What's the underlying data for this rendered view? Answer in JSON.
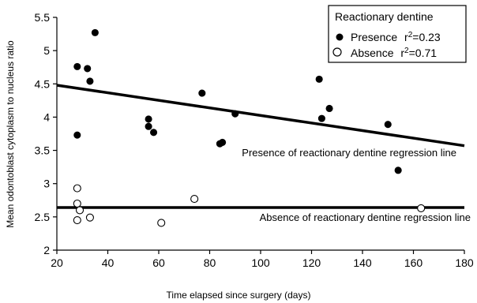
{
  "chart_data": {
    "type": "scatter",
    "xlabel": "Time elapsed since surgery (days)",
    "ylabel": "Mean odontoblast cytoplasm to nucleus ratio",
    "xlim": [
      20,
      180
    ],
    "ylim": [
      2,
      5.5
    ],
    "xticks": [
      20,
      40,
      60,
      80,
      100,
      120,
      140,
      160,
      180
    ],
    "yticks": [
      2,
      2.5,
      3,
      3.5,
      4,
      4.5,
      5,
      5.5
    ],
    "grid": false,
    "legend_title": "Reactionary dentine",
    "legend_position": "top-right",
    "series": [
      {
        "name": "Presence",
        "r2_label": "r2=0.23",
        "marker": "filled-circle",
        "color": "#000000",
        "points": [
          [
            28,
            4.76
          ],
          [
            28,
            3.73
          ],
          [
            32,
            4.73
          ],
          [
            33,
            4.54
          ],
          [
            35,
            5.27
          ],
          [
            56,
            3.97
          ],
          [
            56,
            3.86
          ],
          [
            58,
            3.77
          ],
          [
            77,
            4.36
          ],
          [
            84,
            3.6
          ],
          [
            85,
            3.62
          ],
          [
            90,
            4.05
          ],
          [
            123,
            4.57
          ],
          [
            124,
            3.98
          ],
          [
            127,
            4.13
          ],
          [
            150,
            3.89
          ],
          [
            154,
            3.2
          ]
        ],
        "regression": {
          "x": [
            20,
            180
          ],
          "y": [
            4.48,
            3.57
          ]
        },
        "regression_label": "Presence of reactionary dentine regression line"
      },
      {
        "name": "Absence",
        "r2_label": "r2=0.71",
        "marker": "open-circle",
        "color": "#000000",
        "points": [
          [
            28,
            2.93
          ],
          [
            28,
            2.7
          ],
          [
            29,
            2.6
          ],
          [
            28,
            2.45
          ],
          [
            33,
            2.49
          ],
          [
            61,
            2.41
          ],
          [
            74,
            2.77
          ],
          [
            163,
            2.63
          ]
        ],
        "regression": {
          "x": [
            20,
            180
          ],
          "y": [
            2.64,
            2.64
          ]
        },
        "regression_label": "Absence of reactionary dentine regression line"
      }
    ]
  }
}
